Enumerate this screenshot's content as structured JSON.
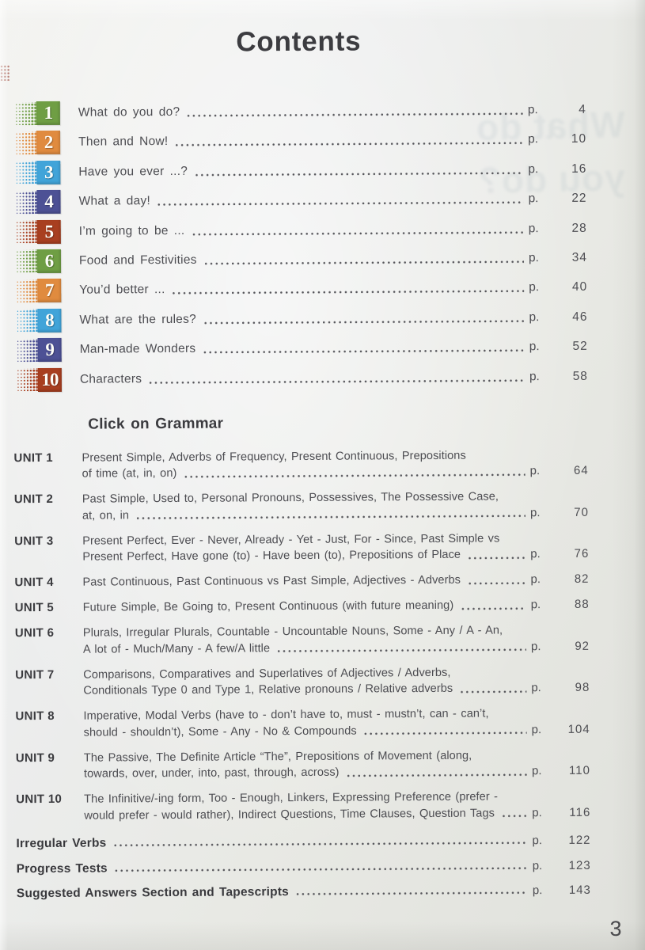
{
  "page": {
    "title": "Contents",
    "page_label": "p.",
    "folio": "3",
    "grammar_heading": "Click on Grammar"
  },
  "colors": {
    "green": "#6f9e44",
    "orange": "#e08b3f",
    "blue": "#41a4d9",
    "purple": "#4d5195",
    "brick": "#a83f20"
  },
  "units": [
    {
      "num": "1",
      "color": "#6f9e44",
      "title": "What do you do?",
      "page": "4"
    },
    {
      "num": "2",
      "color": "#e08b3f",
      "title": "Then and Now!",
      "page": "10"
    },
    {
      "num": "3",
      "color": "#41a4d9",
      "title": "Have you ever ...?",
      "page": "16"
    },
    {
      "num": "4",
      "color": "#4d5195",
      "title": "What a day!",
      "page": "22"
    },
    {
      "num": "5",
      "color": "#a83f20",
      "title": "I’m going to be ...",
      "page": "28"
    },
    {
      "num": "6",
      "color": "#6f9e44",
      "title": "Food and Festivities",
      "page": "34"
    },
    {
      "num": "7",
      "color": "#e08b3f",
      "title": "You’d better ...",
      "page": "40"
    },
    {
      "num": "8",
      "color": "#41a4d9",
      "title": "What are the rules?",
      "page": "46"
    },
    {
      "num": "9",
      "color": "#4d5195",
      "title": "Man-made Wonders",
      "page": "52"
    },
    {
      "num": "10",
      "color": "#a83f20",
      "title": "Characters",
      "page": "58"
    }
  ],
  "grammar": [
    {
      "label": "UNIT 1",
      "line1": "Present Simple, Adverbs of Frequency, Present Continuous, Prepositions",
      "line2": "of time (at, in, on)",
      "page": "64"
    },
    {
      "label": "UNIT 2",
      "line1": "Past Simple, Used to, Personal Pronouns, Possessives, The Possessive Case,",
      "line2": "at, on, in",
      "page": "70"
    },
    {
      "label": "UNIT 3",
      "line1": "Present Perfect, Ever - Never, Already - Yet - Just, For - Since, Past Simple vs",
      "line2": "Present Perfect, Have gone (to) - Have been (to), Prepositions of Place",
      "page": "76"
    },
    {
      "label": "UNIT 4",
      "line1": "",
      "line2": "Past Continuous, Past Continuous vs Past Simple, Adjectives - Adverbs",
      "page": "82"
    },
    {
      "label": "UNIT 5",
      "line1": "",
      "line2": "Future Simple, Be Going to, Present Continuous (with future meaning)",
      "page": "88"
    },
    {
      "label": "UNIT 6",
      "line1": "Plurals, Irregular Plurals, Countable - Uncountable Nouns, Some - Any / A - An,",
      "line2": "A lot of - Much/Many - A few/A little",
      "page": "92"
    },
    {
      "label": "UNIT 7",
      "line1": "Comparisons, Comparatives and Superlatives of Adjectives / Adverbs,",
      "line2": "Conditionals Type 0 and Type 1, Relative pronouns / Relative adverbs",
      "page": "98"
    },
    {
      "label": "UNIT 8",
      "line1": "Imperative, Modal Verbs (have to - don’t have to, must - mustn’t, can - can’t,",
      "line2": "should - shouldn’t), Some - Any - No & Compounds",
      "page": "104"
    },
    {
      "label": "UNIT 9",
      "line1": "The Passive, The Definite Article “The”, Prepositions of Movement (along,",
      "line2": "towards, over, under, into, past, through, across)",
      "page": "110"
    },
    {
      "label": "UNIT 10",
      "line1": "The Infinitive/-ing form, Too - Enough, Linkers, Expressing Preference (prefer -",
      "line2": "would prefer - would rather), Indirect Questions, Time Clauses, Question Tags",
      "page": "116"
    }
  ],
  "back_matter": [
    {
      "label": "Irregular Verbs",
      "page": "122"
    },
    {
      "label": "Progress Tests",
      "page": "123"
    },
    {
      "label": "Suggested Answers Section and Tapescripts",
      "page": "143"
    }
  ],
  "ghost": {
    "line1": "What do",
    "line2": "you do?"
  }
}
